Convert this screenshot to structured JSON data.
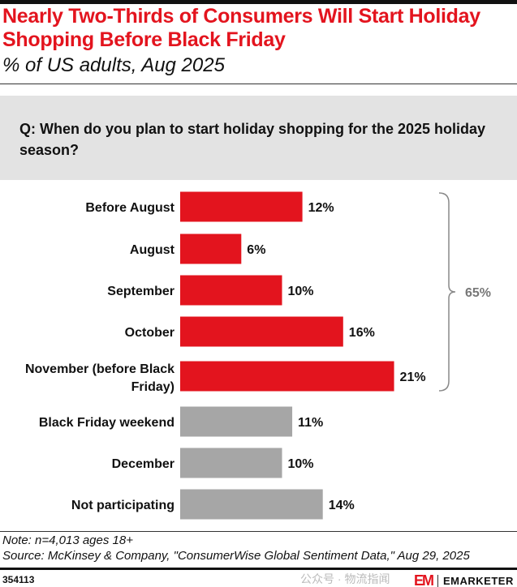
{
  "title": "Nearly Two-Thirds of Consumers Will Start Holiday Shopping Before Black Friday",
  "subtitle": "% of US adults, Aug 2025",
  "question": "Q: When do you plan to start holiday shopping for the 2025 holiday season?",
  "chart_data": {
    "type": "bar",
    "orientation": "horizontal",
    "categories": [
      "Before August",
      "August",
      "September",
      "October",
      "November (before Black Friday)",
      "Black Friday weekend",
      "December",
      "Not participating"
    ],
    "values": [
      12,
      6,
      10,
      16,
      21,
      11,
      10,
      14
    ],
    "labels": [
      "12%",
      "6%",
      "10%",
      "16%",
      "21%",
      "11%",
      "10%",
      "14%"
    ],
    "bar_colors": [
      "#e3141e",
      "#e3141e",
      "#e3141e",
      "#e3141e",
      "#e3141e",
      "#a6a6a6",
      "#a6a6a6",
      "#a6a6a6"
    ],
    "bracket": {
      "label": "65%",
      "covers": [
        "Before August",
        "August",
        "September",
        "October",
        "November (before Black Friday)"
      ]
    },
    "grid": false
  },
  "footer": {
    "note": "Note: n=4,013 ages 18+",
    "source": "Source: McKinsey & Company, \"ConsumerWise Global Sentiment Data,\" Aug 29, 2025",
    "chart_id": "354113",
    "watermark": "公众号 · 物流指闻",
    "logo_mark": "EM",
    "brand": "EMARKETER"
  },
  "colors": {
    "accent": "#e3141e",
    "neutral": "#a6a6a6"
  }
}
